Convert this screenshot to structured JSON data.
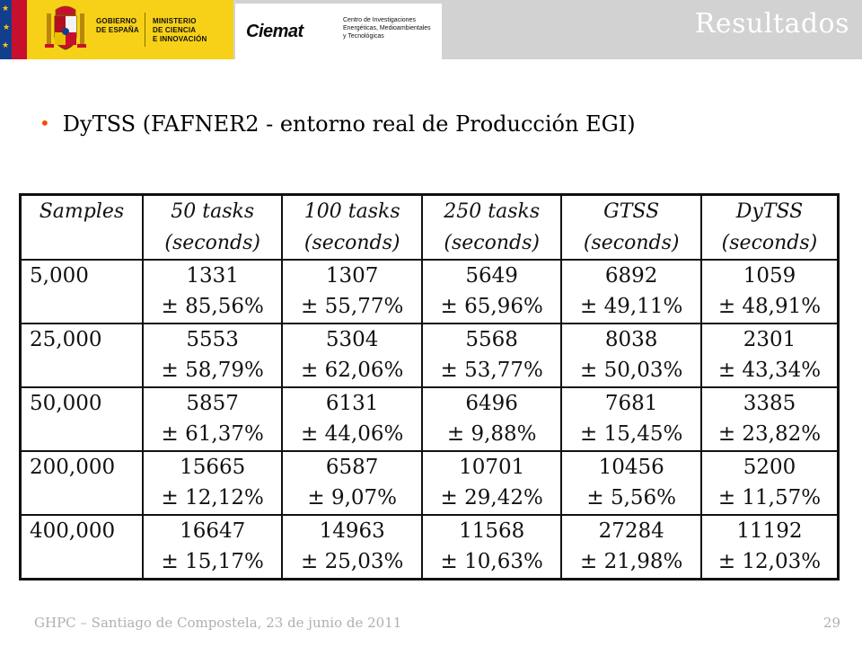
{
  "header": {
    "gov_name_lines": [
      "GOBIERNO",
      "DE ESPAÑA"
    ],
    "ministry_lines": [
      "MINISTERIO",
      "DE CIENCIA",
      "E INNOVACIÓN"
    ],
    "ciemat_logo": "Ciemat",
    "ciemat_desc_lines": [
      "Centro de Investigaciones",
      "Energéticas, Medioambientales",
      "y Tecnológicas"
    ],
    "section_title": "Resultados",
    "colors": {
      "band": "#d2d2d2",
      "gov_yellow": "#f7d117",
      "flag_red": "#c8102e",
      "flag_blue": "#123f8c"
    }
  },
  "bullet": {
    "text": "DyTSS (FAFNER2 - entorno real de Producción EGI)",
    "marker": "•",
    "marker_color": "#ff4500"
  },
  "table": {
    "columns": [
      {
        "label": "Samples",
        "unit": ""
      },
      {
        "label": "50 tasks",
        "unit": "(seconds)"
      },
      {
        "label": "100 tasks",
        "unit": "(seconds)"
      },
      {
        "label": "250 tasks",
        "unit": "(seconds)"
      },
      {
        "label": "GTSS",
        "unit": "(seconds)"
      },
      {
        "label": "DyTSS",
        "unit": "(seconds)"
      }
    ],
    "rows": [
      {
        "samples": "5,000",
        "cells": [
          {
            "value": "1331",
            "dev": "± 85,56%"
          },
          {
            "value": "1307",
            "dev": "± 55,77%"
          },
          {
            "value": "5649",
            "dev": "± 65,96%"
          },
          {
            "value": "6892",
            "dev": "± 49,11%"
          },
          {
            "value": "1059",
            "dev": "± 48,91%"
          }
        ]
      },
      {
        "samples": "25,000",
        "cells": [
          {
            "value": "5553",
            "dev": "± 58,79%"
          },
          {
            "value": "5304",
            "dev": "± 62,06%"
          },
          {
            "value": "5568",
            "dev": "± 53,77%"
          },
          {
            "value": "8038",
            "dev": "± 50,03%"
          },
          {
            "value": "2301",
            "dev": "± 43,34%"
          }
        ]
      },
      {
        "samples": "50,000",
        "cells": [
          {
            "value": "5857",
            "dev": "± 61,37%"
          },
          {
            "value": "6131",
            "dev": "± 44,06%"
          },
          {
            "value": "6496",
            "dev": "± 9,88%"
          },
          {
            "value": "7681",
            "dev": "± 15,45%"
          },
          {
            "value": "3385",
            "dev": "± 23,82%"
          }
        ]
      },
      {
        "samples": "200,000",
        "cells": [
          {
            "value": "15665",
            "dev": "± 12,12%"
          },
          {
            "value": "6587",
            "dev": "± 9,07%"
          },
          {
            "value": "10701",
            "dev": "± 29,42%"
          },
          {
            "value": "10456",
            "dev": "± 5,56%"
          },
          {
            "value": "5200",
            "dev": "± 11,57%"
          }
        ]
      },
      {
        "samples": "400,000",
        "cells": [
          {
            "value": "16647",
            "dev": "± 15,17%"
          },
          {
            "value": "14963",
            "dev": "± 25,03%"
          },
          {
            "value": "11568",
            "dev": "± 10,63%"
          },
          {
            "value": "27284",
            "dev": "± 21,98%"
          },
          {
            "value": "11192",
            "dev": "± 12,03%"
          }
        ]
      }
    ]
  },
  "footer": {
    "text": "GHPC – Santiago de Compostela, 23 de junio de 2011",
    "page_number": "29"
  }
}
